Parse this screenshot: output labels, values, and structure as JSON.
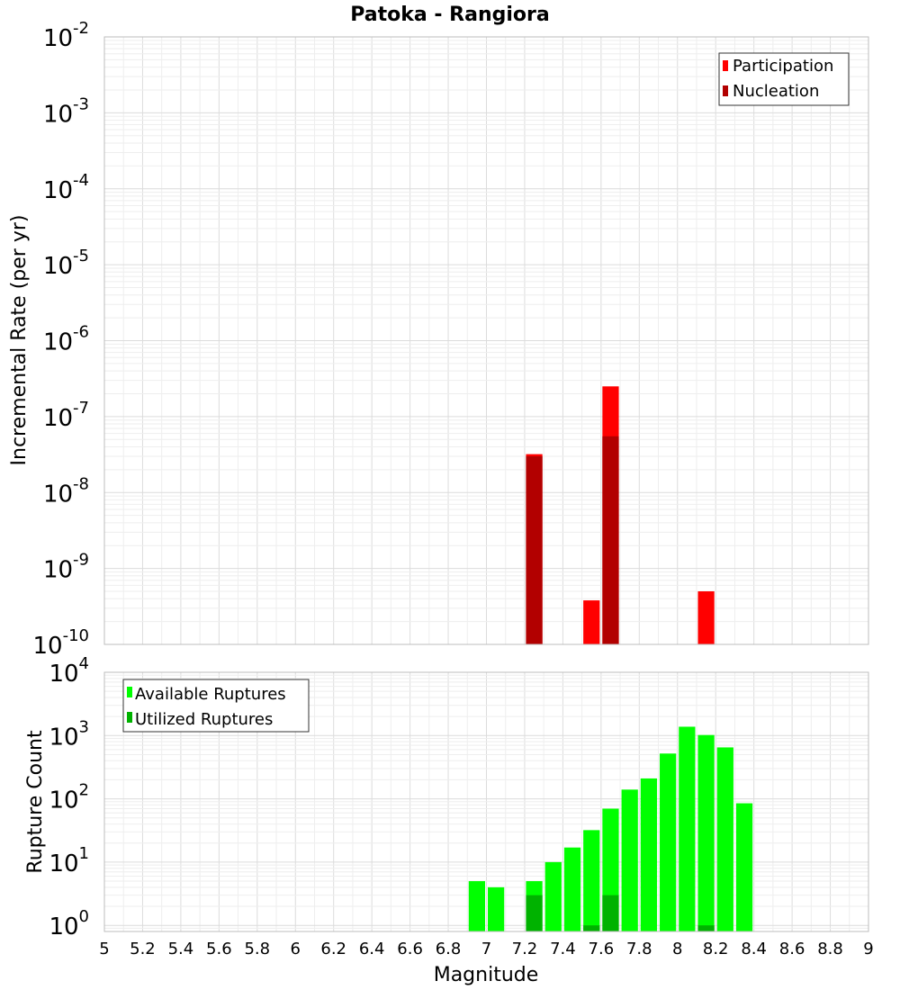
{
  "title": "Patoka - Rangiora",
  "colors": {
    "participation": "#ff0000",
    "nucleation": "#b20000",
    "available": "#00ff00",
    "utilized": "#00b200",
    "grid_major": "#dcdcdc",
    "grid_minor": "#eeeeee",
    "frame": "#bcbcbc"
  },
  "chart_data": [
    {
      "type": "bar",
      "name": "rate-panel",
      "yscale": "log",
      "ylabel": "Incremental Rate (per yr)",
      "xlabel": "Magnitude",
      "xlim": [
        5,
        9
      ],
      "ylim": [
        1e-10,
        0.01
      ],
      "ytick_exponents": [
        "-10",
        "-9",
        "-8",
        "-7",
        "-6",
        "-5",
        "-4",
        "-3",
        "-2"
      ],
      "bin_width": 0.1,
      "legend_position": "top-right",
      "series": [
        {
          "name": "Participation",
          "points": [
            {
              "x": 7.25,
              "y": 3.2e-08
            },
            {
              "x": 7.55,
              "y": 3.8e-10
            },
            {
              "x": 7.65,
              "y": 2.5e-07
            },
            {
              "x": 8.15,
              "y": 5e-10
            }
          ]
        },
        {
          "name": "Nucleation",
          "points": [
            {
              "x": 7.25,
              "y": 3e-08
            },
            {
              "x": 7.65,
              "y": 5.5e-08
            }
          ]
        }
      ]
    },
    {
      "type": "bar",
      "name": "count-panel",
      "yscale": "log",
      "ylabel": "Rupture Count",
      "xlabel": "Magnitude",
      "xlim": [
        5,
        9
      ],
      "ylim": [
        0.8,
        10000
      ],
      "ytick_exponents": [
        "0",
        "1",
        "2",
        "3",
        "4"
      ],
      "bin_width": 0.1,
      "legend_position": "top-left",
      "series": [
        {
          "name": "Available Ruptures",
          "points": [
            {
              "x": 6.95,
              "y": 5
            },
            {
              "x": 7.05,
              "y": 4
            },
            {
              "x": 7.25,
              "y": 5
            },
            {
              "x": 7.35,
              "y": 10
            },
            {
              "x": 7.45,
              "y": 17
            },
            {
              "x": 7.55,
              "y": 32
            },
            {
              "x": 7.65,
              "y": 70
            },
            {
              "x": 7.75,
              "y": 140
            },
            {
              "x": 7.85,
              "y": 210
            },
            {
              "x": 7.95,
              "y": 520
            },
            {
              "x": 8.05,
              "y": 1380
            },
            {
              "x": 8.15,
              "y": 1020
            },
            {
              "x": 8.25,
              "y": 650
            },
            {
              "x": 8.35,
              "y": 85
            }
          ]
        },
        {
          "name": "Utilized Ruptures",
          "points": [
            {
              "x": 7.25,
              "y": 3
            },
            {
              "x": 7.55,
              "y": 1
            },
            {
              "x": 7.65,
              "y": 3
            },
            {
              "x": 8.15,
              "y": 1
            }
          ]
        }
      ]
    }
  ],
  "x_ticks": [
    "5",
    "5.2",
    "5.4",
    "5.6",
    "5.8",
    "6",
    "6.2",
    "6.4",
    "6.6",
    "6.8",
    "7",
    "7.2",
    "7.4",
    "7.6",
    "7.8",
    "8",
    "8.2",
    "8.4",
    "8.6",
    "8.8",
    "9"
  ],
  "x_tick_values": [
    5,
    5.2,
    5.4,
    5.6,
    5.8,
    6,
    6.2,
    6.4,
    6.6,
    6.8,
    7,
    7.2,
    7.4,
    7.6,
    7.8,
    8,
    8.2,
    8.4,
    8.6,
    8.8,
    9
  ]
}
